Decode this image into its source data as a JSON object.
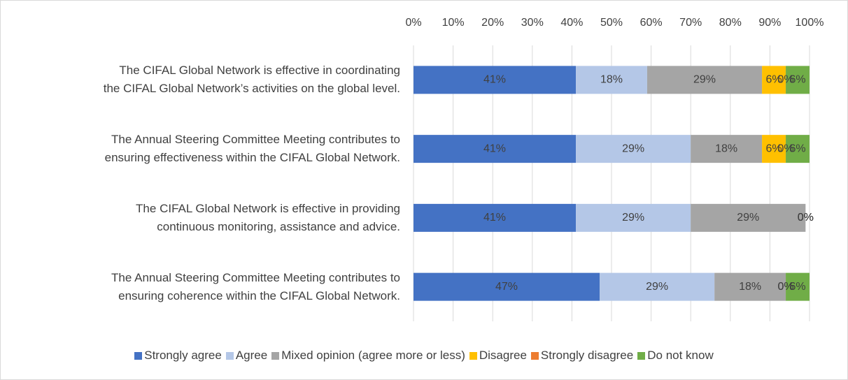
{
  "chart_data": {
    "type": "stacked-barh",
    "categories": [
      "The CIFAL Global Network is effective in coordinating\nthe CIFAL Global Network’s activities on the global level.",
      "The Annual Steering Committee Meeting contributes to\nensuring effectiveness within the CIFAL Global Network.",
      "The CIFAL Global Network is effective in providing\ncontinuous monitoring, assistance and advice.",
      "The Annual Steering Committee Meeting contributes to\nensuring coherence within the CIFAL Global Network."
    ],
    "series": [
      {
        "name": "Strongly agree",
        "color": "#4472c4",
        "values": [
          41,
          41,
          41,
          47
        ],
        "value_labels": [
          "41%",
          "41%",
          "41%",
          "47%"
        ]
      },
      {
        "name": "Agree",
        "color": "#b4c7e7",
        "values": [
          18,
          29,
          29,
          29
        ],
        "value_labels": [
          "18%",
          "29%",
          "29%",
          "29%"
        ]
      },
      {
        "name": "Mixed opinion (agree more or less)",
        "color": "#a5a5a5",
        "values": [
          29,
          18,
          29,
          18
        ],
        "value_labels": [
          "29%",
          "18%",
          "29%",
          "18%"
        ]
      },
      {
        "name": "Disagree",
        "color": "#ffc000",
        "values": [
          6,
          6,
          0,
          0
        ],
        "value_labels": [
          "6%",
          "6%",
          "0%",
          "0%"
        ]
      },
      {
        "name": "Strongly disagree",
        "color": "#ed7d31",
        "values": [
          0,
          0,
          0,
          0
        ],
        "value_labels": [
          "0%",
          "0%",
          "0%",
          "0%"
        ]
      },
      {
        "name": "Do not know",
        "color": "#70ad47",
        "values": [
          6,
          6,
          0,
          6
        ],
        "value_labels": [
          "6%",
          "6%",
          "0%",
          "6%"
        ]
      }
    ],
    "xlim": [
      0,
      100
    ],
    "xticks": [
      {
        "value": 0,
        "label": "0%"
      },
      {
        "value": 10,
        "label": "10%"
      },
      {
        "value": 20,
        "label": "20%"
      },
      {
        "value": 30,
        "label": "30%"
      },
      {
        "value": 40,
        "label": "40%"
      },
      {
        "value": 50,
        "label": "50%"
      },
      {
        "value": 60,
        "label": "60%"
      },
      {
        "value": 70,
        "label": "70%"
      },
      {
        "value": 80,
        "label": "80%"
      },
      {
        "value": 90,
        "label": "90%"
      },
      {
        "value": 100,
        "label": "100%"
      }
    ],
    "grid": true,
    "legend": "bottom"
  }
}
